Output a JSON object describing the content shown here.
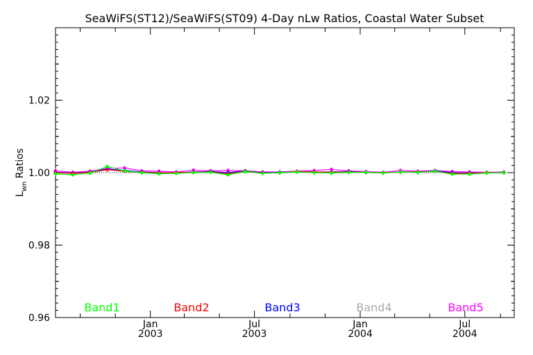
{
  "chart_data": {
    "type": "line",
    "title": "SeaWiFS(ST12)/SeaWiFS(ST09) 4-Day nLw Ratios, Coastal Water Subset",
    "ylabel_main": "L",
    "ylabel_sub": "wn",
    "ylabel_rest": " Ratios",
    "ylim": [
      0.96,
      1.04
    ],
    "yticks": [
      "0.96",
      "0.98",
      "1.00",
      "1.02"
    ],
    "xlim": [
      "2002-07-20",
      "2004-09-25"
    ],
    "xtick_labels": [
      {
        "month": "Jan",
        "year": "2003",
        "date": "2003-01-01"
      },
      {
        "month": "Jul",
        "year": "2003",
        "date": "2003-07-01"
      },
      {
        "month": "Jan",
        "year": "2004",
        "date": "2004-01-01"
      },
      {
        "month": "Jul",
        "year": "2004",
        "date": "2004-07-01"
      }
    ],
    "minor_tick_dates": [
      "2002-09-01",
      "2002-11-01",
      "2003-03-01",
      "2003-05-01",
      "2003-09-01",
      "2003-11-01",
      "2004-03-01",
      "2004-05-01",
      "2004-09-01"
    ],
    "reference_line": 1.0,
    "x": [
      "2002-07-20",
      "2002-08-19",
      "2002-09-18",
      "2002-10-18",
      "2002-11-17",
      "2002-12-17",
      "2003-01-16",
      "2003-02-15",
      "2003-03-17",
      "2003-04-16",
      "2003-05-16",
      "2003-06-15",
      "2003-07-15",
      "2003-08-14",
      "2003-09-13",
      "2003-10-13",
      "2003-11-12",
      "2003-12-12",
      "2004-01-11",
      "2004-02-10",
      "2004-03-11",
      "2004-04-10",
      "2004-05-10",
      "2004-06-09",
      "2004-07-09",
      "2004-08-08",
      "2004-09-07"
    ],
    "series": [
      {
        "name": "Band1",
        "color": "#00ff00",
        "values": [
          0.9997,
          0.9994,
          0.9999,
          1.0017,
          1.0005,
          1.0,
          0.9997,
          0.9998,
          1.0,
          1.0001,
          0.9994,
          1.0003,
          0.9998,
          1.0,
          1.0002,
          1.0,
          0.9999,
          1.0001,
          1.0001,
          0.9999,
          1.0002,
          1.0001,
          1.0004,
          0.9996,
          0.9996,
          0.9999,
          1.0
        ]
      },
      {
        "name": "Band2",
        "color": "#ff0000",
        "values": [
          1.0,
          0.9998,
          1.0001,
          1.0008,
          1.0004,
          1.0001,
          0.9999,
          1.0,
          1.0001,
          1.0002,
          0.9997,
          1.0004,
          0.9999,
          1.0,
          1.0003,
          1.0002,
          1.0001,
          1.0002,
          1.0001,
          1.0,
          1.0002,
          1.0002,
          1.0004,
          0.9998,
          0.9998,
          1.0,
          1.0
        ]
      },
      {
        "name": "Band3",
        "color": "#0000ff",
        "values": [
          1.0001,
          0.9999,
          1.0002,
          1.001,
          1.0006,
          1.0002,
          1.0,
          1.0,
          1.0002,
          1.0003,
          1.0,
          1.0005,
          1.0,
          1.0001,
          1.0003,
          1.0002,
          1.0002,
          1.0003,
          1.0001,
          1.0,
          1.0002,
          1.0002,
          1.0005,
          1.0,
          0.9999,
          1.0,
          1.0
        ]
      },
      {
        "name": "Band4",
        "color": "#aaaaaa",
        "values": [
          0.9996,
          0.9995,
          0.9999,
          1.0009,
          1.0003,
          0.9999,
          0.9998,
          0.9999,
          1.0001,
          1.0001,
          0.9996,
          1.0002,
          0.9999,
          0.9999,
          1.0001,
          1.0,
          0.9999,
          1.0,
          1.0,
          0.9999,
          1.0001,
          1.0,
          1.0003,
          0.9996,
          0.9997,
          0.9999,
          0.9999
        ]
      },
      {
        "name": "Band5",
        "color": "#ff00ff",
        "values": [
          1.0005,
          1.0001,
          1.0004,
          1.0012,
          1.0013,
          1.0005,
          1.0004,
          1.0002,
          1.0007,
          1.0005,
          1.0006,
          1.0005,
          1.0002,
          1.0002,
          1.0004,
          1.0006,
          1.0009,
          1.0005,
          1.0003,
          1.0001,
          1.0006,
          1.0004,
          1.0006,
          1.0003,
          1.0002,
          1.0001,
          1.0002
        ]
      }
    ],
    "legend_placement": "bottom, inside plot"
  }
}
